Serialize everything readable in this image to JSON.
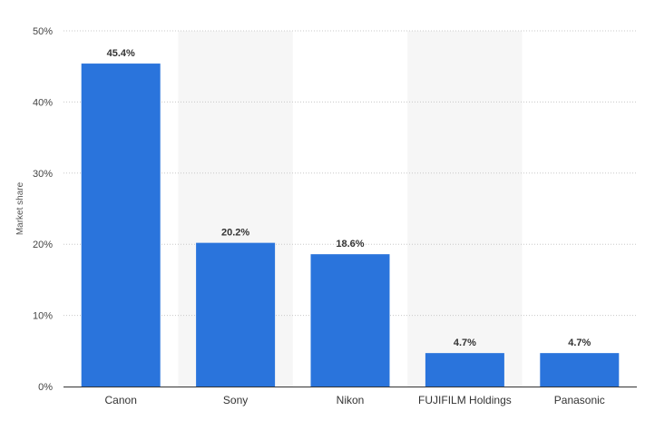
{
  "chart_data": {
    "type": "bar",
    "title": "",
    "xlabel": "",
    "ylabel": "Market share",
    "categories": [
      "Canon",
      "Sony",
      "Nikon",
      "FUJIFILM Holdings",
      "Panasonic"
    ],
    "values": [
      45.4,
      20.2,
      18.6,
      4.7,
      4.7
    ],
    "value_labels": [
      "45.4%",
      "20.2%",
      "18.6%",
      "4.7%",
      "4.7%"
    ],
    "ylim": [
      0,
      50
    ],
    "yticks": [
      0,
      10,
      20,
      30,
      40,
      50
    ],
    "ytick_labels": [
      "0%",
      "10%",
      "20%",
      "30%",
      "40%",
      "50%"
    ],
    "grid": true,
    "legend": "none",
    "bar_color": "#2a74dc",
    "band_color": "#f6f6f6",
    "grid_color": "#c8c8c8"
  }
}
